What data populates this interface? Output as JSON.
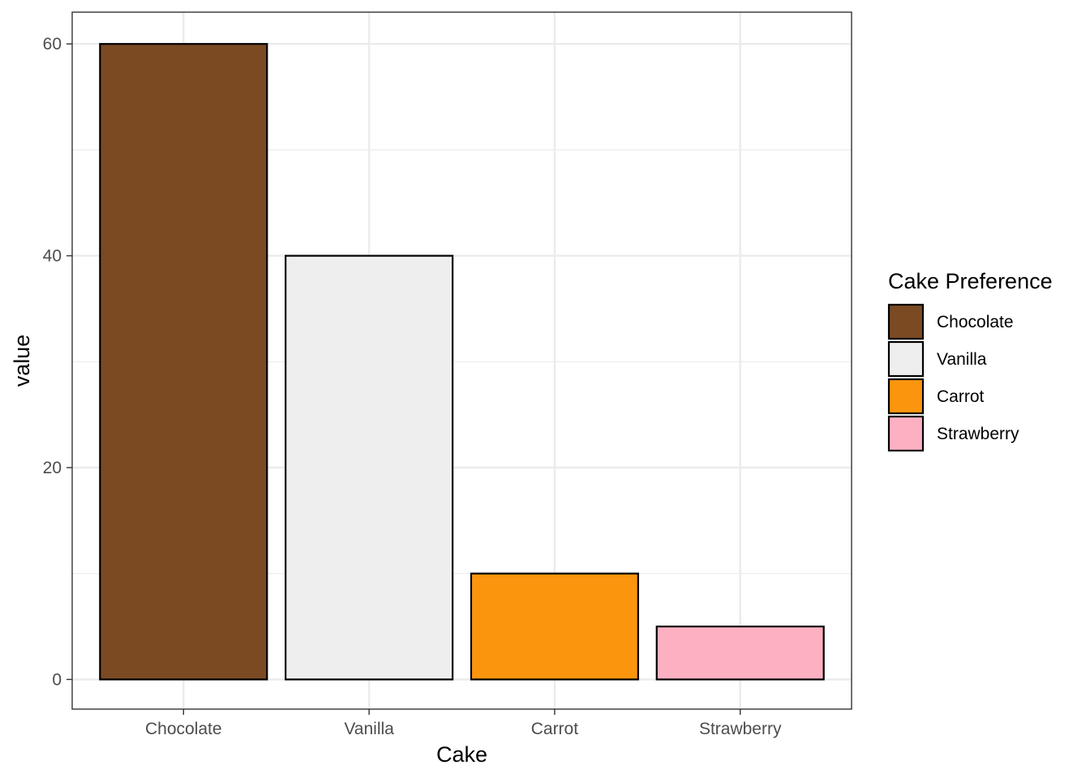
{
  "chart_data": {
    "type": "bar",
    "categories": [
      "Chocolate",
      "Vanilla",
      "Carrot",
      "Strawberry"
    ],
    "values": [
      60,
      40,
      10,
      5
    ],
    "colors": [
      "#7B4A23",
      "#EEEEEE",
      "#FB950E",
      "#FDB0C2"
    ],
    "bar_outline": "#000000",
    "xlabel": "Cake",
    "ylabel": "value",
    "ylim": [
      -2.8,
      63
    ],
    "yticks": [
      0,
      20,
      40,
      60
    ],
    "y_minor_ticks": [
      10,
      30,
      50
    ],
    "grid": true,
    "legend": {
      "title": "Cake Preference",
      "position": "right",
      "items": [
        "Chocolate",
        "Vanilla",
        "Carrot",
        "Strawberry"
      ]
    }
  }
}
